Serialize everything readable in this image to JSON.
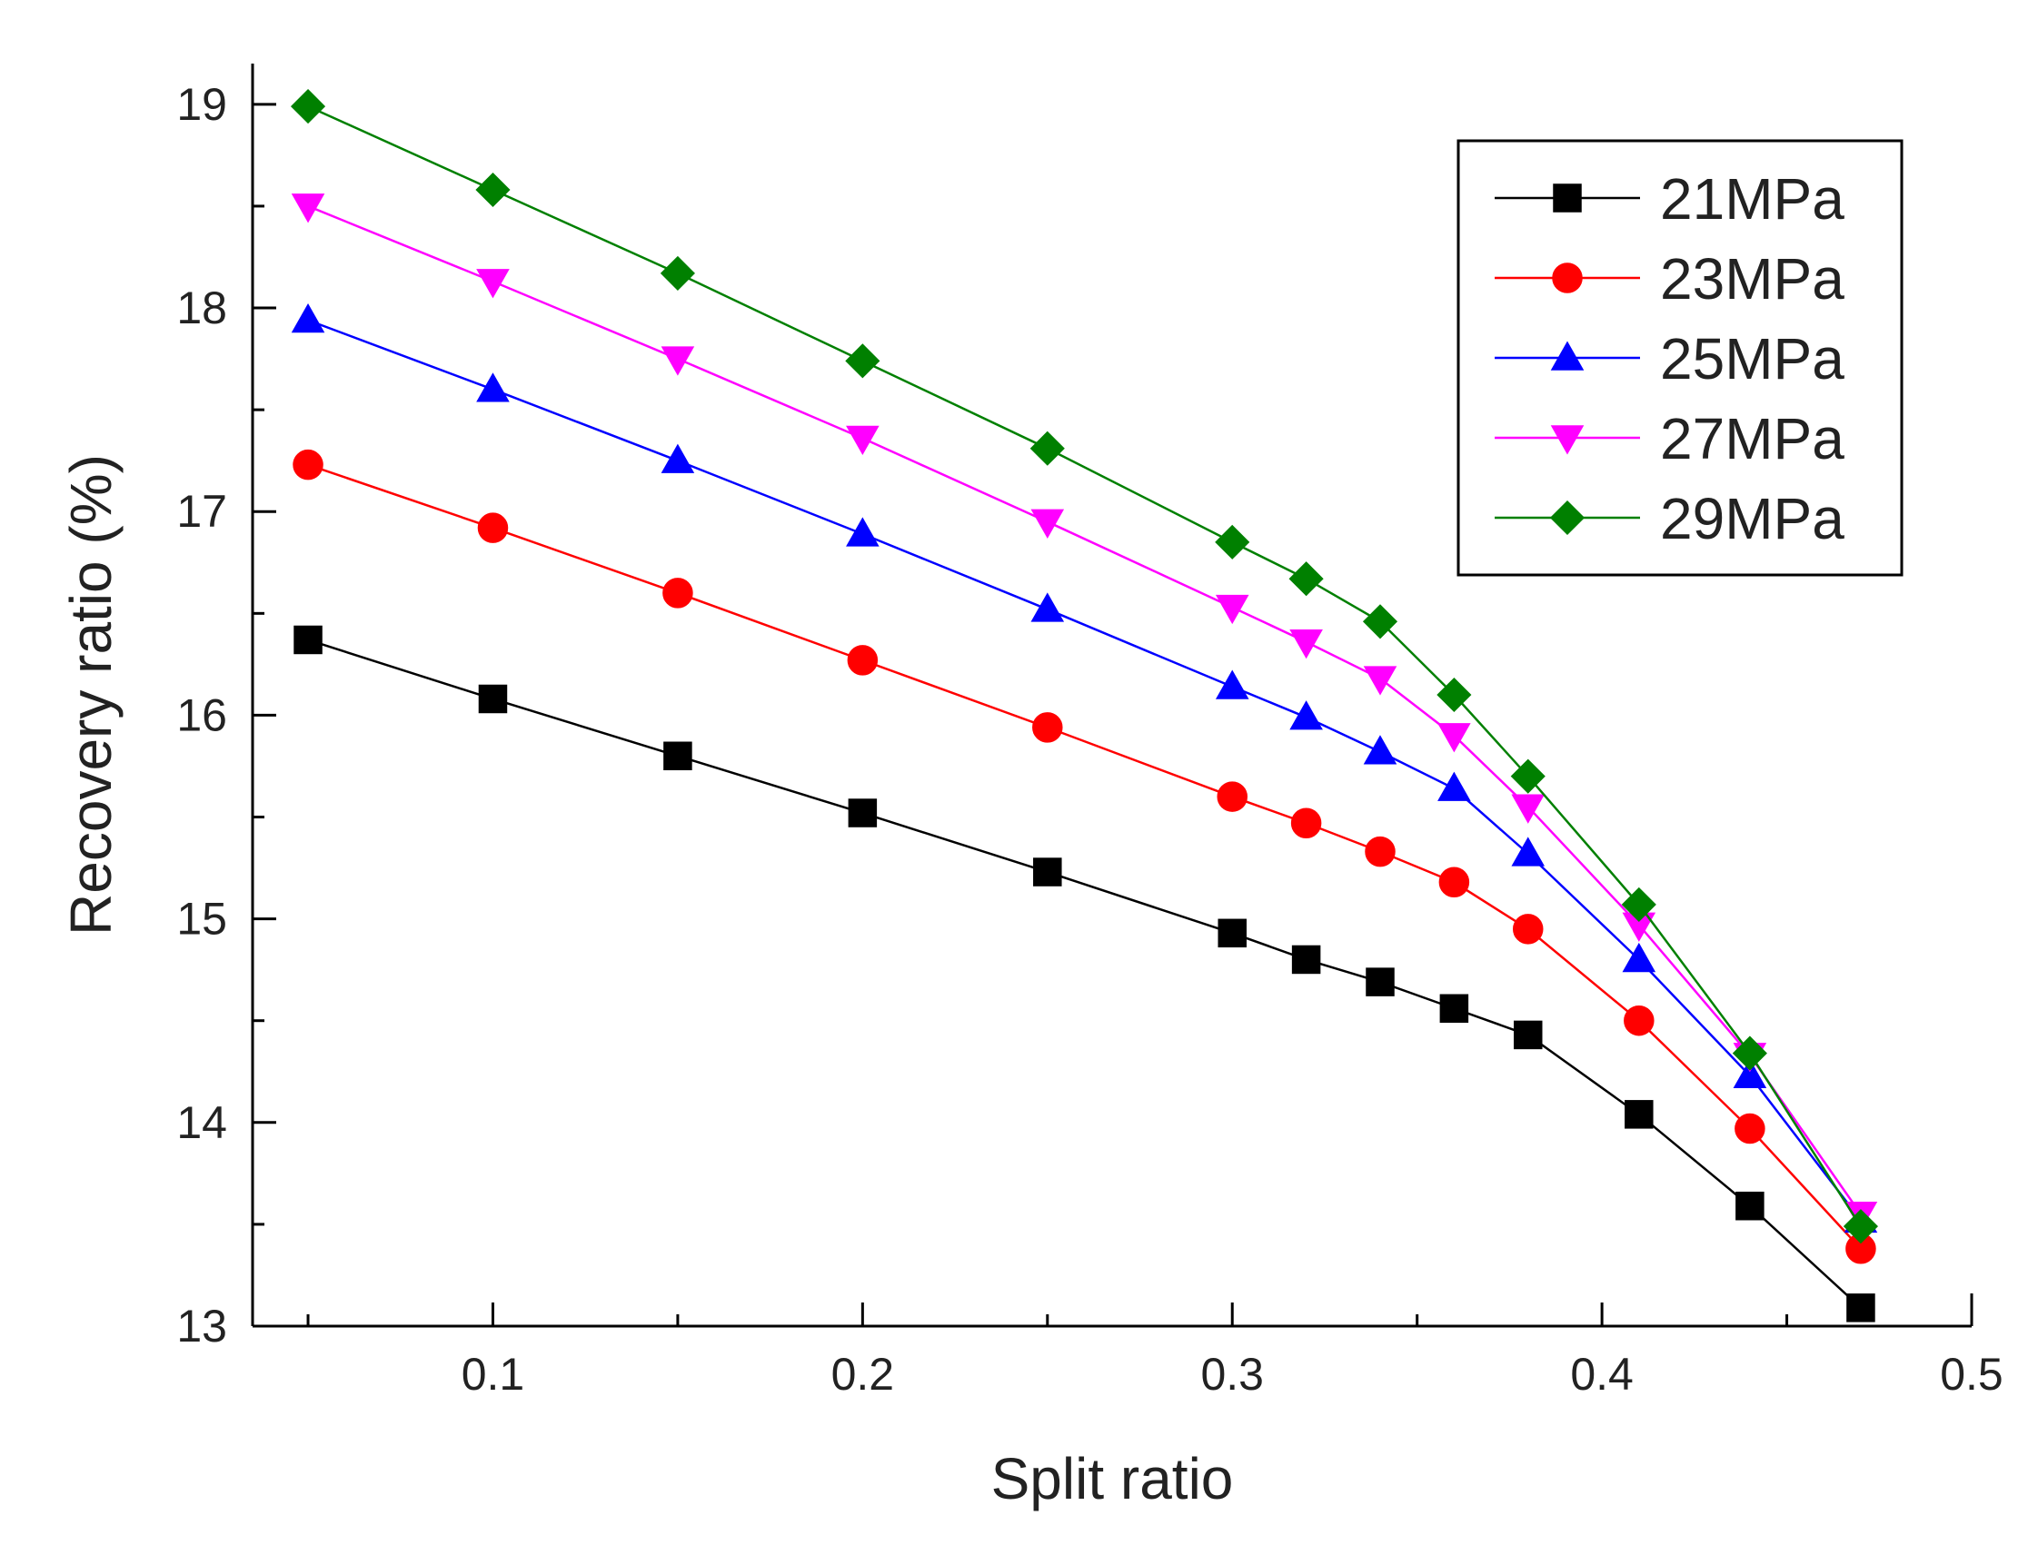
{
  "chart_data": {
    "type": "line",
    "title": "",
    "xlabel": "Split ratio",
    "ylabel": "Recovery ratio (%)",
    "xlim": [
      0.035,
      0.5
    ],
    "ylim": [
      13,
      19.2
    ],
    "x_ticks": [
      0.1,
      0.2,
      0.3,
      0.4,
      0.5
    ],
    "x_tick_labels": [
      "0.1",
      "0.2",
      "0.3",
      "0.4",
      "0.5"
    ],
    "y_ticks": [
      13,
      14,
      15,
      16,
      17,
      18,
      19
    ],
    "y_tick_labels": [
      "13",
      "14",
      "15",
      "16",
      "17",
      "18",
      "19"
    ],
    "grid": false,
    "legend_position": "top-right",
    "x": [
      0.05,
      0.1,
      0.15,
      0.2,
      0.25,
      0.3,
      0.32,
      0.34,
      0.36,
      0.38,
      0.41,
      0.44,
      0.47
    ],
    "series": [
      {
        "name": "21MPa",
        "color": "#000000",
        "marker": "square",
        "values": [
          16.37,
          16.08,
          15.8,
          15.52,
          15.23,
          14.93,
          14.8,
          14.69,
          14.56,
          14.43,
          14.04,
          13.59,
          13.09
        ]
      },
      {
        "name": "23MPa",
        "color": "#ff0000",
        "marker": "circle",
        "values": [
          17.23,
          16.92,
          16.6,
          16.27,
          15.94,
          15.6,
          15.47,
          15.33,
          15.18,
          14.95,
          14.5,
          13.97,
          13.38
        ]
      },
      {
        "name": "25MPa",
        "color": "#0000ff",
        "marker": "triangle-up",
        "values": [
          17.94,
          17.6,
          17.25,
          16.89,
          16.52,
          16.14,
          15.99,
          15.82,
          15.64,
          15.32,
          14.8,
          14.23,
          13.52
        ]
      },
      {
        "name": "27MPa",
        "color": "#ff00ff",
        "marker": "triangle-down",
        "values": [
          18.5,
          18.13,
          17.75,
          17.36,
          16.95,
          16.53,
          16.36,
          16.18,
          15.9,
          15.55,
          14.97,
          14.33,
          13.55
        ]
      },
      {
        "name": "29MPa",
        "color": "#008000",
        "marker": "diamond",
        "values": [
          18.99,
          18.58,
          18.17,
          17.74,
          17.31,
          16.85,
          16.67,
          16.46,
          16.1,
          15.7,
          15.07,
          14.34,
          13.49
        ]
      }
    ]
  }
}
